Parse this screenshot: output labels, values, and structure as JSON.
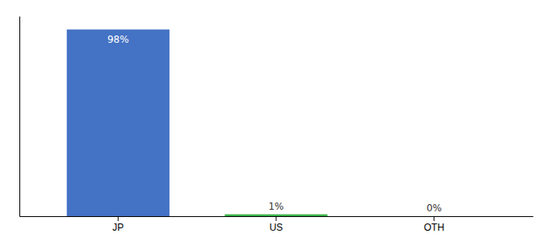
{
  "chart_data": {
    "type": "bar",
    "categories": [
      "JP",
      "US",
      "OTH"
    ],
    "values": [
      98,
      1,
      0
    ],
    "value_labels": [
      "98%",
      "1%",
      "0%"
    ],
    "data_labels": true,
    "colors": [
      "#4472C4",
      "#3CB54A",
      "#4472C4"
    ],
    "ylim": [
      0,
      105
    ],
    "tick_labels": "x"
  }
}
